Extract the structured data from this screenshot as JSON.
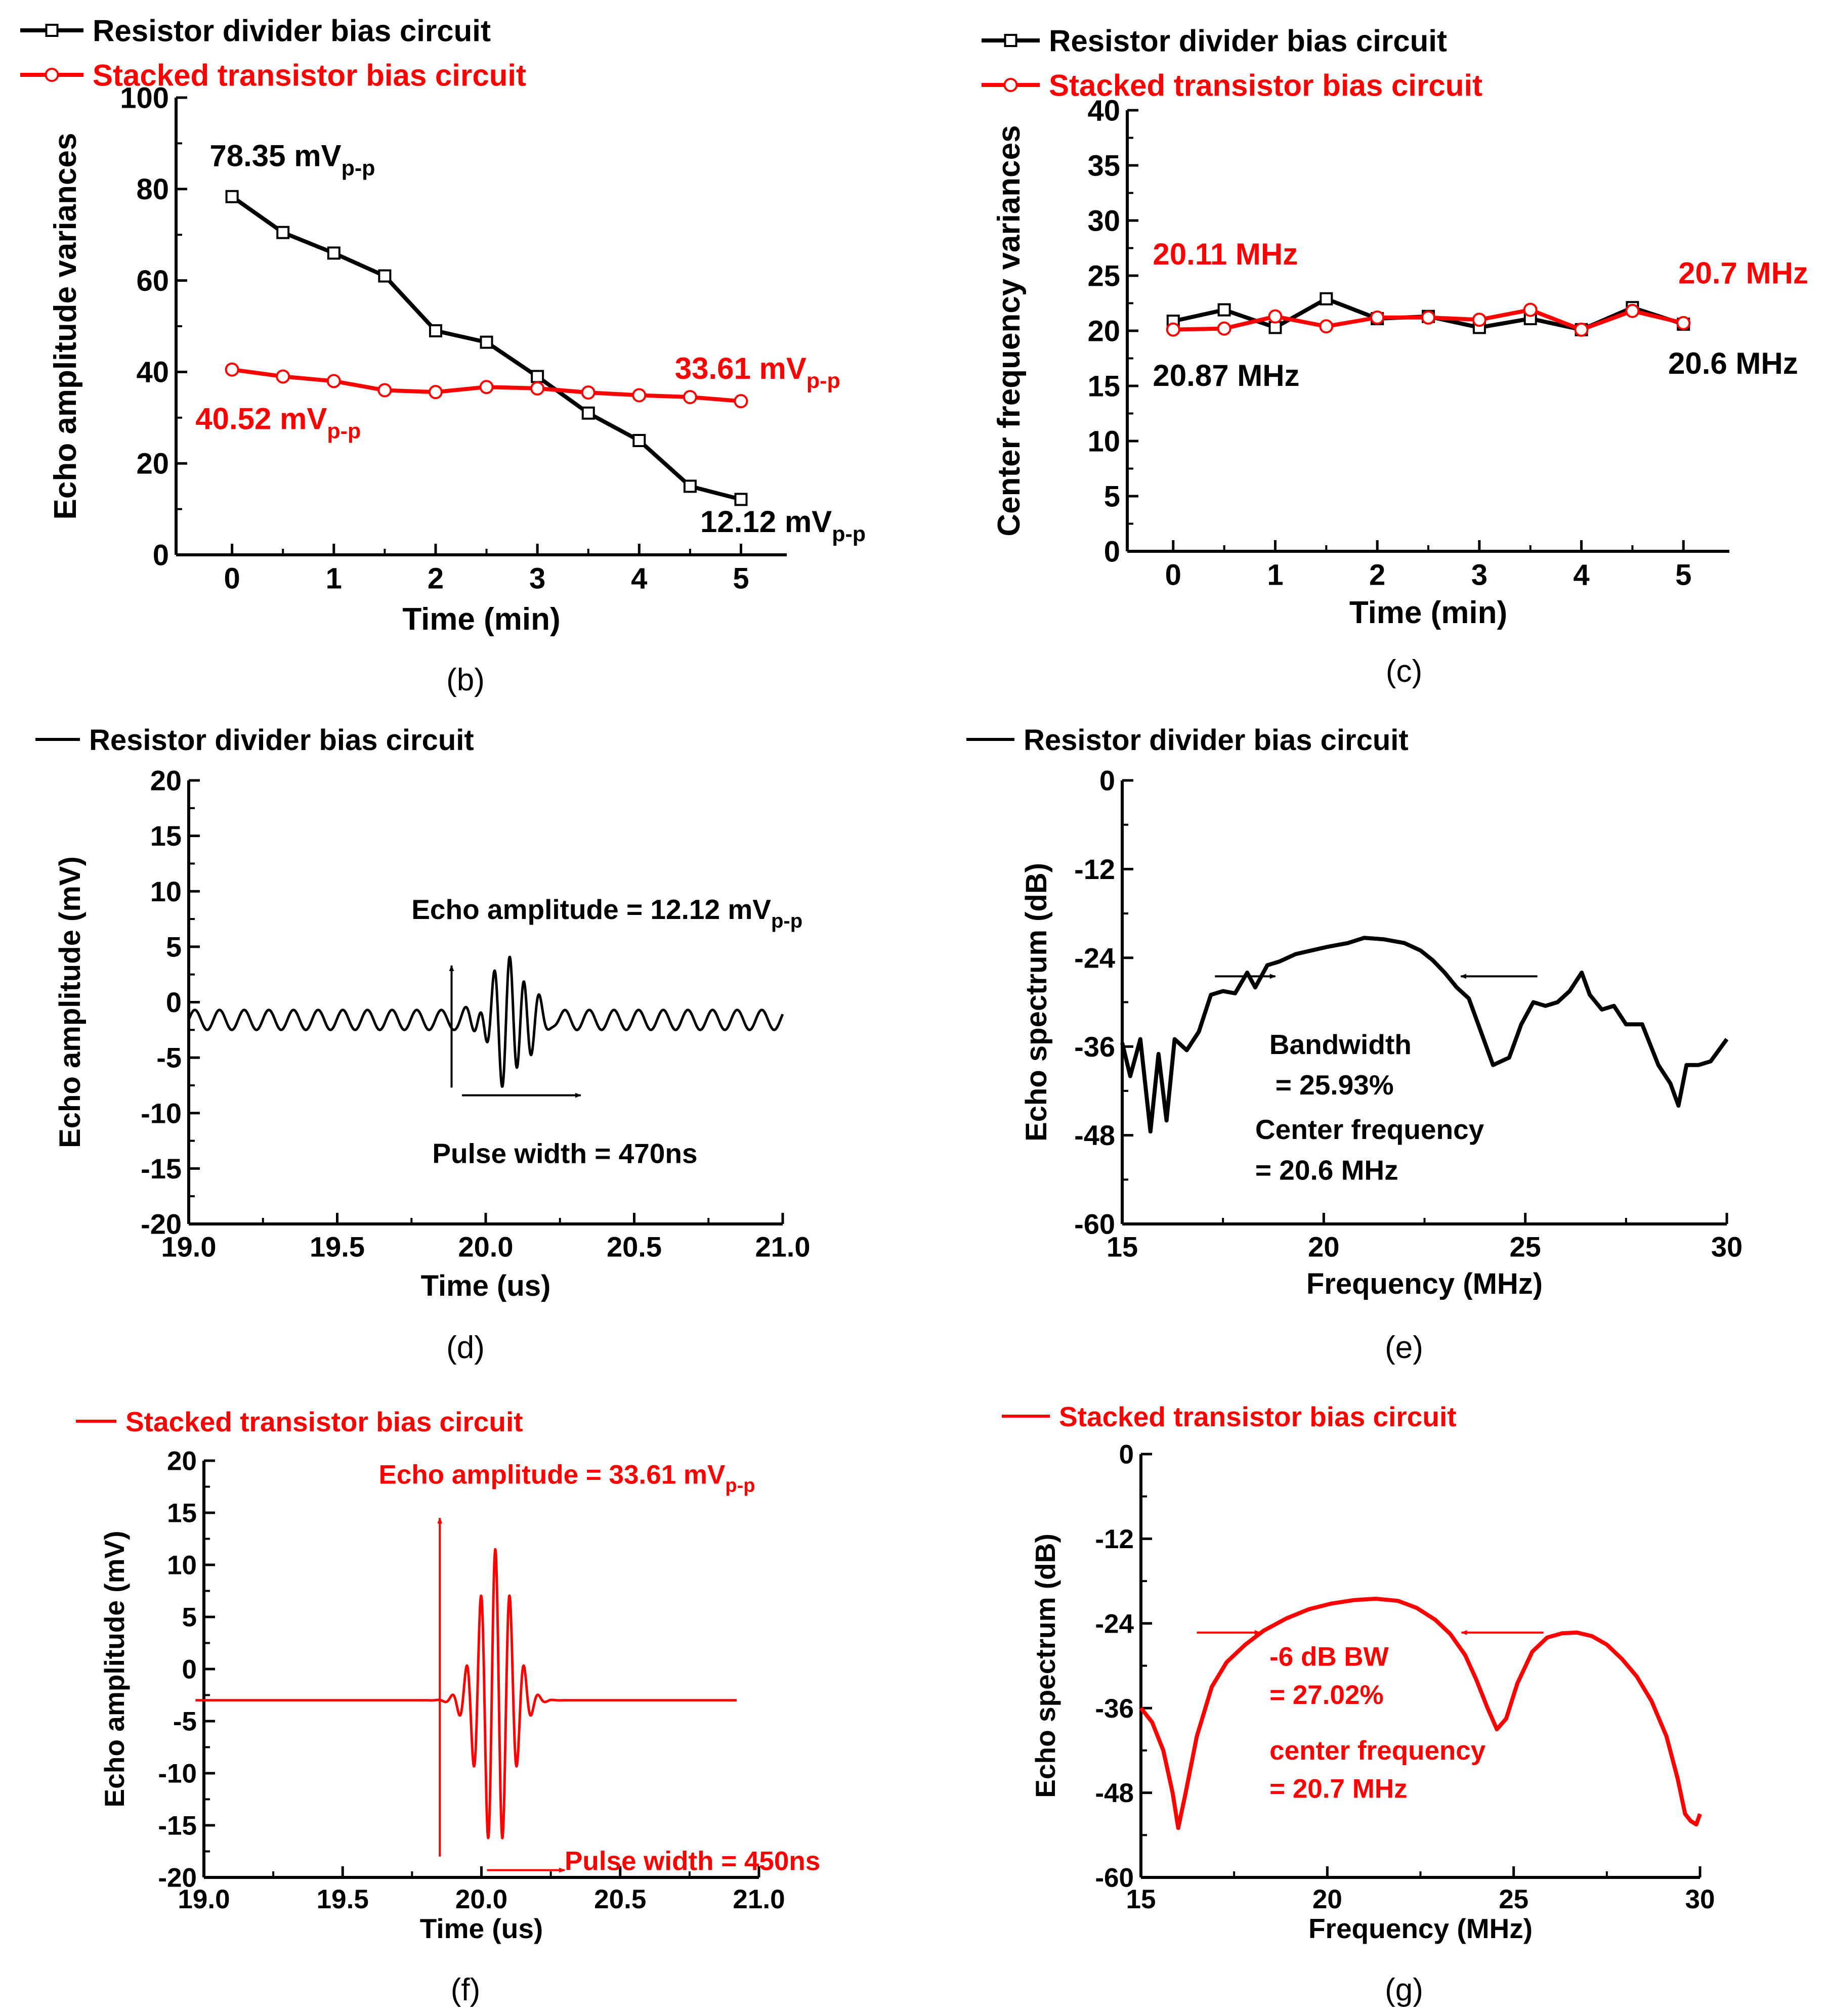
{
  "colors": {
    "black": "#000000",
    "red": "#ff0000"
  },
  "chart_data": [
    {
      "id": "b",
      "type": "line",
      "panel_label": "(b)",
      "xlabel": "Time (min)",
      "ylabel": "Echo amplitude variances",
      "xlim": [
        -0.55,
        5.45
      ],
      "ylim": [
        0,
        100
      ],
      "xticks": [
        0,
        1,
        2,
        3,
        4,
        5
      ],
      "yticks": [
        0,
        20,
        40,
        60,
        80,
        100
      ],
      "legend": [
        "Resistor divider bias circuit",
        "Stacked transistor bias circuit"
      ],
      "series": [
        {
          "name": "Resistor divider bias circuit",
          "color": "#000000",
          "marker": "square",
          "x": [
            0,
            0.5,
            1,
            1.5,
            2,
            2.5,
            3,
            3.5,
            4,
            4.5,
            5
          ],
          "y": [
            78.35,
            70.5,
            66,
            61,
            49,
            46.5,
            39,
            31,
            25,
            15,
            12.12
          ]
        },
        {
          "name": "Stacked transistor bias circuit",
          "color": "#ff0000",
          "marker": "circle",
          "x": [
            0,
            0.5,
            1,
            1.5,
            2,
            2.5,
            3,
            3.5,
            4,
            4.5,
            5
          ],
          "y": [
            40.52,
            39,
            38,
            36,
            35.6,
            36.7,
            36.4,
            35.5,
            34.9,
            34.5,
            33.61
          ]
        }
      ],
      "annotations": [
        {
          "main": "78.35 mV",
          "sub": "p-p",
          "color": "#000000",
          "x": -0.22,
          "y": 85
        },
        {
          "main": "40.52 mV",
          "sub": "p-p",
          "color": "#ff0000",
          "x": -0.36,
          "y": 27.5
        },
        {
          "main": "33.61 mV",
          "sub": "p-p",
          "color": "#ff0000",
          "x": 4.35,
          "y": 38.5
        },
        {
          "main": "12.12 mV",
          "sub": "p-p",
          "color": "#000000",
          "x": 4.6,
          "y": 5
        }
      ]
    },
    {
      "id": "c",
      "type": "line",
      "panel_label": "(c)",
      "xlabel": "Time (min)",
      "ylabel": "Center frequency variances",
      "xlim": [
        -0.45,
        5.45
      ],
      "ylim": [
        0,
        40
      ],
      "xticks": [
        0,
        1,
        2,
        3,
        4,
        5
      ],
      "yticks": [
        0,
        5,
        10,
        15,
        20,
        25,
        30,
        35,
        40
      ],
      "legend": [
        "Resistor divider bias circuit",
        "Stacked transistor bias circuit"
      ],
      "series": [
        {
          "name": "Resistor divider bias circuit",
          "color": "#000000",
          "marker": "square",
          "x": [
            0,
            0.5,
            1,
            1.5,
            2,
            2.5,
            3,
            3.5,
            4,
            4.5,
            5
          ],
          "y": [
            20.87,
            21.9,
            20.3,
            22.9,
            21.1,
            21.3,
            20.3,
            21.1,
            20.1,
            22.1,
            20.6
          ]
        },
        {
          "name": "Stacked transistor bias circuit",
          "color": "#ff0000",
          "marker": "circle",
          "x": [
            0,
            0.5,
            1,
            1.5,
            2,
            2.5,
            3,
            3.5,
            4,
            4.5,
            5
          ],
          "y": [
            20.11,
            20.2,
            21.3,
            20.4,
            21.2,
            21.2,
            21.0,
            21.9,
            20.1,
            21.8,
            20.7
          ]
        }
      ],
      "annotations": [
        {
          "main": "20.11 MHz",
          "color": "#ff0000",
          "x": -0.2,
          "y": 26
        },
        {
          "main": "20.87 MHz",
          "color": "#000000",
          "x": -0.2,
          "y": 15
        },
        {
          "main": "20.7 MHz",
          "color": "#ff0000",
          "x": 4.95,
          "y": 24.3
        },
        {
          "main": "20.6 MHz",
          "color": "#000000",
          "x": 4.85,
          "y": 16.1
        }
      ]
    },
    {
      "id": "d",
      "type": "line",
      "panel_label": "(d)",
      "xlabel": "Time (us)",
      "ylabel": "Echo amplitude (mV)",
      "xlim": [
        19.0,
        21.0
      ],
      "ylim": [
        -20,
        20
      ],
      "xticks": [
        19.0,
        19.5,
        20.0,
        20.5,
        21.0
      ],
      "yticks": [
        -20,
        -15,
        -10,
        -5,
        0,
        5,
        10,
        15,
        20
      ],
      "legend": [
        "Resistor divider bias circuit"
      ],
      "series": [
        {
          "name": "Resistor divider bias circuit",
          "color": "#000000",
          "waveform": {
            "baseline": -1.6,
            "noise_amp": 0.9,
            "noise_period": 0.083,
            "burst_center": 20.08,
            "burst_amp": 5.6,
            "burst_period": 0.05,
            "burst_sigma": 0.085,
            "x_start": 19.0,
            "x_end": 21.0
          }
        }
      ],
      "annotations": [
        {
          "main": "Echo amplitude = 12.12 mV",
          "sub": "p-p",
          "color": "#000000",
          "x": 19.75,
          "y": 7.5
        },
        {
          "main": "Pulse width = 470ns",
          "color": "#000000",
          "x": 19.82,
          "y": -14.5
        }
      ],
      "arrows": [
        {
          "x1": 19.885,
          "y1": -7.7,
          "x2": 19.885,
          "y2": 3.3,
          "color": "#000000"
        },
        {
          "x1": 19.92,
          "y1": -8.4,
          "x2": 20.32,
          "y2": -8.4,
          "color": "#000000"
        }
      ]
    },
    {
      "id": "e",
      "type": "line",
      "panel_label": "(e)",
      "xlabel": "Frequency (MHz)",
      "ylabel": "Echo spectrum (dB)",
      "xlim": [
        15,
        30
      ],
      "ylim": [
        -60,
        0
      ],
      "xticks": [
        15,
        20,
        25,
        30
      ],
      "yticks": [
        -60,
        -48,
        -36,
        -24,
        -12,
        0
      ],
      "legend": [
        "Resistor divider bias circuit"
      ],
      "series": [
        {
          "name": "Resistor divider bias circuit",
          "color": "#000000",
          "x": [
            15,
            15.2,
            15.45,
            15.7,
            15.9,
            16.1,
            16.3,
            16.6,
            16.9,
            17.2,
            17.5,
            17.8,
            18.1,
            18.3,
            18.6,
            18.9,
            19.3,
            19.7,
            20.1,
            20.6,
            21.0,
            21.5,
            22.0,
            22.4,
            22.7,
            23.0,
            23.3,
            23.6,
            23.9,
            24.2,
            24.6,
            24.9,
            25.2,
            25.5,
            25.8,
            26.1,
            26.4,
            26.6,
            26.9,
            27.2,
            27.5,
            27.9,
            28.3,
            28.6,
            28.8,
            29.0,
            29.3,
            29.6,
            30
          ],
          "y": [
            -35.5,
            -40,
            -35,
            -47.5,
            -37,
            -46,
            -35,
            -36.5,
            -34,
            -29,
            -28.5,
            -28.8,
            -26,
            -28,
            -25,
            -24.5,
            -23.5,
            -23,
            -22.5,
            -22,
            -21.3,
            -21.5,
            -22,
            -23,
            -24.3,
            -26,
            -28,
            -29.5,
            -34,
            -38.5,
            -37.5,
            -33,
            -30,
            -30.5,
            -30,
            -28.5,
            -26,
            -29,
            -31,
            -30.5,
            -33,
            -33,
            -38.5,
            -41,
            -44,
            -38.5,
            -38.5,
            -38,
            -35
          ]
        }
      ],
      "annotations": [
        {
          "main": "Bandwidth",
          "color": "#000000",
          "x": 18.65,
          "y": -37
        },
        {
          "main": "= 25.93%",
          "color": "#000000",
          "x": 18.8,
          "y": -42.5
        },
        {
          "main": "Center frequency",
          "color": "#000000",
          "x": 18.3,
          "y": -48.5
        },
        {
          "main": "= 20.6 MHz",
          "color": "#000000",
          "x": 18.3,
          "y": -54
        }
      ],
      "arrows": [
        {
          "x1": 17.3,
          "y1": -26.5,
          "x2": 18.8,
          "y2": -26.5,
          "color": "#000000"
        },
        {
          "x1": 25.3,
          "y1": -26.5,
          "x2": 23.4,
          "y2": -26.5,
          "color": "#000000"
        }
      ]
    },
    {
      "id": "f",
      "type": "line",
      "panel_label": "(f)",
      "xlabel": "Time (us)",
      "ylabel": "Echo amplitude (mV)",
      "xlim": [
        19.0,
        21.0
      ],
      "ylim": [
        -20,
        20
      ],
      "xticks": [
        19.0,
        19.5,
        20.0,
        20.5,
        21.0
      ],
      "yticks": [
        -20,
        -15,
        -10,
        -5,
        0,
        5,
        10,
        15,
        20
      ],
      "legend": [
        "Stacked transistor bias circuit"
      ],
      "series": [
        {
          "name": "Stacked transistor bias circuit",
          "color": "#ff0000",
          "waveform": {
            "baseline": -3.0,
            "noise_amp": 0.0,
            "noise_period": 0.1,
            "burst_center": 20.05,
            "burst_amp": 14.5,
            "burst_period": 0.052,
            "burst_sigma": 0.085,
            "x_start": 18.97,
            "x_end": 20.92
          }
        }
      ],
      "annotations": [
        {
          "main": "Echo amplitude = 33.61 mV",
          "sub": "p-p",
          "color": "#ff0000",
          "x": 19.63,
          "y": 17.8
        },
        {
          "main": "Pulse width = 450ns",
          "color": "#ff0000",
          "x": 20.3,
          "y": -19.3
        }
      ],
      "arrows": [
        {
          "x1": 19.85,
          "y1": -18,
          "x2": 19.85,
          "y2": 14.5,
          "color": "#ff0000"
        },
        {
          "x1": 20.02,
          "y1": -19.3,
          "x2": 20.3,
          "y2": -19.3,
          "color": "#ff0000"
        }
      ]
    },
    {
      "id": "g",
      "type": "line",
      "panel_label": "(g)",
      "xlabel": "Frequency (MHz)",
      "ylabel": "Echo spectrum (dB)",
      "xlim": [
        15,
        30
      ],
      "ylim": [
        -60,
        0
      ],
      "xticks": [
        15,
        20,
        25,
        30
      ],
      "yticks": [
        -60,
        -48,
        -36,
        -24,
        -12,
        0
      ],
      "legend": [
        "Stacked transistor bias circuit"
      ],
      "series": [
        {
          "name": "Stacked transistor bias circuit",
          "color": "#ff0000",
          "x": [
            15,
            15.3,
            15.6,
            15.85,
            16.0,
            16.2,
            16.5,
            16.9,
            17.3,
            17.8,
            18.3,
            18.9,
            19.5,
            20.1,
            20.7,
            21.3,
            21.9,
            22.4,
            22.9,
            23.3,
            23.7,
            24.0,
            24.3,
            24.55,
            24.8,
            25.1,
            25.5,
            25.9,
            26.3,
            26.7,
            27.1,
            27.5,
            27.9,
            28.3,
            28.7,
            29.1,
            29.4,
            29.6,
            29.75,
            29.9,
            30.0
          ],
          "y": [
            -36,
            -38,
            -42,
            -48,
            -53,
            -48,
            -40,
            -33,
            -29.5,
            -27,
            -25,
            -23.3,
            -22,
            -21.2,
            -20.7,
            -20.5,
            -20.8,
            -21.8,
            -23.5,
            -25.5,
            -28.5,
            -32,
            -36,
            -39,
            -37.5,
            -32.5,
            -28,
            -26,
            -25.4,
            -25.3,
            -25.8,
            -27,
            -29,
            -31.5,
            -35,
            -40,
            -46,
            -51,
            -52,
            -52.5,
            -51
          ]
        }
      ],
      "annotations": [
        {
          "main": "-6 dB BW",
          "color": "#ff0000",
          "x": 18.45,
          "y": -30
        },
        {
          "main": "= 27.02%",
          "color": "#ff0000",
          "x": 18.45,
          "y": -35.4
        },
        {
          "main": "center frequency",
          "color": "#ff0000",
          "x": 18.45,
          "y": -43.3
        },
        {
          "main": "= 20.7 MHz",
          "color": "#ff0000",
          "x": 18.45,
          "y": -48.7
        }
      ],
      "arrows": [
        {
          "x1": 16.5,
          "y1": -25.3,
          "x2": 18.2,
          "y2": -25.3,
          "color": "#ff0000"
        },
        {
          "x1": 25.8,
          "y1": -25.3,
          "x2": 23.6,
          "y2": -25.3,
          "color": "#ff0000"
        }
      ]
    }
  ]
}
